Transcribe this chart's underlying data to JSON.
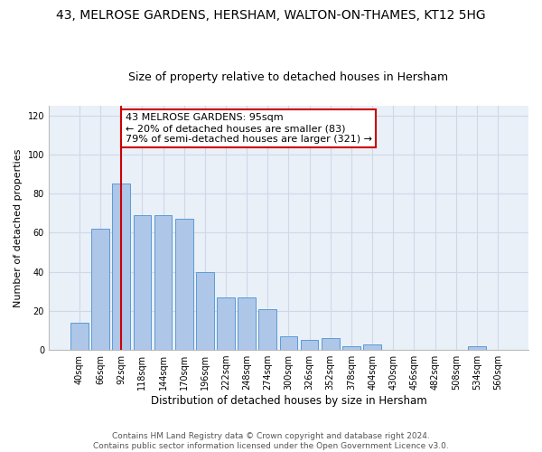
{
  "title": "43, MELROSE GARDENS, HERSHAM, WALTON-ON-THAMES, KT12 5HG",
  "subtitle": "Size of property relative to detached houses in Hersham",
  "xlabel": "Distribution of detached houses by size in Hersham",
  "ylabel": "Number of detached properties",
  "categories": [
    "40sqm",
    "66sqm",
    "92sqm",
    "118sqm",
    "144sqm",
    "170sqm",
    "196sqm",
    "222sqm",
    "248sqm",
    "274sqm",
    "300sqm",
    "326sqm",
    "352sqm",
    "378sqm",
    "404sqm",
    "430sqm",
    "456sqm",
    "482sqm",
    "508sqm",
    "534sqm",
    "560sqm"
  ],
  "values": [
    14,
    62,
    85,
    69,
    69,
    67,
    40,
    27,
    27,
    21,
    7,
    5,
    6,
    2,
    3,
    0,
    0,
    0,
    0,
    2,
    0
  ],
  "bar_color": "#aec6e8",
  "bar_edge_color": "#5b9bd5",
  "grid_color": "#d0d8e8",
  "background_color": "#eaf0f8",
  "annotation_box_text": "43 MELROSE GARDENS: 95sqm\n← 20% of detached houses are smaller (83)\n79% of semi-detached houses are larger (321) →",
  "annotation_box_color": "#ffffff",
  "annotation_box_edge_color": "#cc0000",
  "vline_color": "#cc0000",
  "ylim": [
    0,
    125
  ],
  "yticks": [
    0,
    20,
    40,
    60,
    80,
    100,
    120
  ],
  "footer_text": "Contains HM Land Registry data © Crown copyright and database right 2024.\nContains public sector information licensed under the Open Government Licence v3.0.",
  "title_fontsize": 10,
  "subtitle_fontsize": 9,
  "xlabel_fontsize": 8.5,
  "ylabel_fontsize": 8,
  "annotation_fontsize": 8,
  "footer_fontsize": 6.5,
  "tick_fontsize": 7
}
